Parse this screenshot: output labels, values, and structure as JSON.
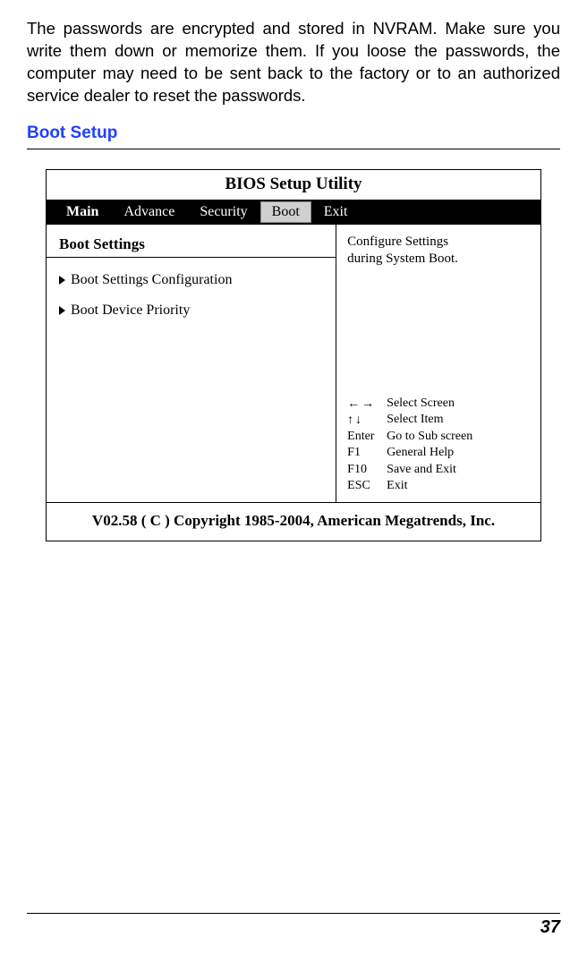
{
  "intro_text": "The passwords are encrypted and stored in NVRAM. Make sure you write them down or memorize them. If you loose the passwords, the computer may need to be sent back to the factory or to an authorized service dealer to reset the passwords.",
  "section_heading": "Boot Setup",
  "bios": {
    "title": "BIOS Setup Utility",
    "tabs": {
      "main": "Main",
      "advance": "Advance",
      "security": "Security",
      "boot": "Boot",
      "exit": "Exit"
    },
    "left": {
      "heading": "Boot Settings",
      "items": [
        "Boot Settings Configuration",
        "Boot Device Priority"
      ]
    },
    "right": {
      "help_line1": "Configure Settings",
      "help_line2": "during System Boot.",
      "keys": [
        {
          "key_glyph": "← →",
          "desc": "Select Screen"
        },
        {
          "key_glyph": "↑ ↓",
          "desc": "Select Item"
        },
        {
          "key_glyph": "Enter",
          "desc": "Go to Sub screen"
        },
        {
          "key_glyph": "F1",
          "desc": "General Help"
        },
        {
          "key_glyph": "F10",
          "desc": "Save and Exit"
        },
        {
          "key_glyph": "ESC",
          "desc": "Exit"
        }
      ]
    },
    "footer": "V02.58  ( C ) Copyright 1985-2004, American Megatrends, Inc."
  },
  "page_number": "37",
  "colors": {
    "heading_blue": "#2040ff",
    "tab_bg": "#000000",
    "tab_selected_bg": "#d0d0d0"
  }
}
